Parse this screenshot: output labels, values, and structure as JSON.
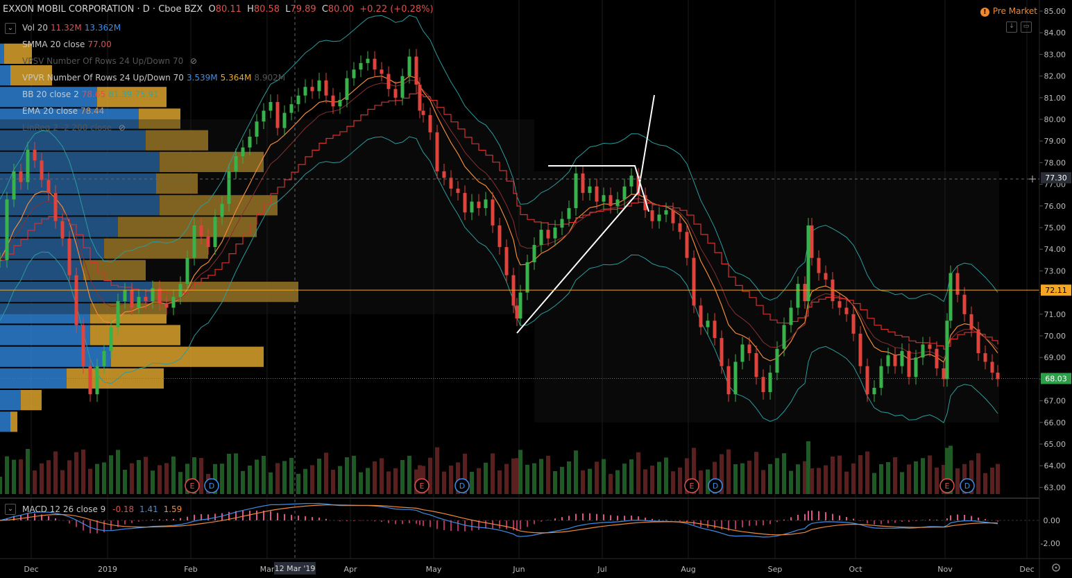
{
  "header": {
    "symbol": "EXXON MOBIL CORPORATION · D · Cboe BZX",
    "open_label": "O",
    "open": "80.11",
    "high_label": "H",
    "high": "80.58",
    "low_label": "L",
    "low": "79.89",
    "close_label": "C",
    "close": "80.00",
    "change": "+0.22 (+0.28%)",
    "premarket": "Pre Market",
    "premarket_icon": "!"
  },
  "indicators": [
    {
      "label": "Vol 20",
      "v1": "11.32M",
      "v2": "13.362M",
      "c1": "#e0504a",
      "c2": "#3d8ee8"
    },
    {
      "label": "SMMA 20 close",
      "v1": "77.00",
      "v2": "",
      "c1": "#e0504a",
      "c2": ""
    },
    {
      "label": "VPSV Number Of Rows 24 Up/Down 70",
      "v1": "",
      "v2": "",
      "c1": "",
      "c2": "",
      "dim": true,
      "eye": true
    },
    {
      "label": "VPVR Number Of Rows 24 Up/Down 70",
      "v1": "3.539M",
      "v2": "5.364M",
      "v3": "8.902M",
      "c1": "#3d8ee8",
      "c2": "#e8a92c"
    },
    {
      "label": "BB 20 close 2",
      "v1": "78.65",
      "v2": "81.39",
      "v3": "75.91",
      "c1": "#e0504a",
      "c2": "#2fa7a7"
    },
    {
      "label": "EMA 20 close",
      "v1": "78.44",
      "v2": "",
      "c1": "#f08a3a",
      "c2": ""
    },
    {
      "label": "LinReg 2 -2 200 close",
      "v1": "",
      "v2": "",
      "c1": "",
      "c2": "",
      "dim": true,
      "eye": true
    }
  ],
  "macd": {
    "label": "MACD 12 26 close 9",
    "v1": "-0.18",
    "v2": "1.41",
    "v3": "1.59",
    "c1": "#e0504a",
    "c2": "#3d8ee8",
    "c3": "#f08a3a"
  },
  "price_axis": {
    "ticks": [
      "85.00",
      "84.00",
      "83.00",
      "82.00",
      "81.00",
      "80.00",
      "79.00",
      "78.00",
      "77.00",
      "76.00",
      "75.00",
      "74.00",
      "73.00",
      "72.00",
      "71.00",
      "70.00",
      "69.00",
      "68.00",
      "67.00",
      "66.00",
      "65.00",
      "64.00",
      "63.00"
    ],
    "badges": [
      {
        "text": "77.30",
        "color": "#2a2e39"
      },
      {
        "text": "72.11",
        "color": "#f5a623"
      },
      {
        "text": "68.03",
        "color": "#2e9e4a"
      }
    ]
  },
  "macd_axis": {
    "ticks": [
      "0.00",
      "-2.00"
    ]
  },
  "time_axis": {
    "labels": [
      "Dec",
      "2019",
      "Feb",
      "Mar",
      "Apr",
      "May",
      "Jun",
      "Jul",
      "Aug",
      "Sep",
      "Oct",
      "Nov",
      "Dec"
    ],
    "crosshair_label": "12 Mar '19"
  },
  "events": [
    {
      "label": "E",
      "color": "#e0504a"
    },
    {
      "label": "D",
      "color": "#3d8ee8"
    },
    {
      "label": "E",
      "color": "#e0504a"
    },
    {
      "label": "D",
      "color": "#3d8ee8"
    },
    {
      "label": "E",
      "color": "#e0504a"
    },
    {
      "label": "D",
      "color": "#3d8ee8"
    },
    {
      "label": "E",
      "color": "#e0504a"
    },
    {
      "label": "D",
      "color": "#3d8ee8"
    }
  ],
  "chart_data": {
    "type": "candlestick",
    "ylim": [
      63,
      85
    ],
    "close_path": [
      [
        0,
        73.5
      ],
      [
        10,
        76.3
      ],
      [
        20,
        77.6
      ],
      [
        30,
        77.1
      ],
      [
        40,
        78.6
      ],
      [
        50,
        78.1
      ],
      [
        60,
        77.2
      ],
      [
        70,
        76.6
      ],
      [
        80,
        75.3
      ],
      [
        90,
        74.5
      ],
      [
        100,
        72.8
      ],
      [
        110,
        70.5
      ],
      [
        120,
        68.6
      ],
      [
        130,
        67.3
      ],
      [
        140,
        68.6
      ],
      [
        150,
        69.3
      ],
      [
        160,
        70.4
      ],
      [
        170,
        71.6
      ],
      [
        180,
        72.1
      ],
      [
        190,
        71.3
      ],
      [
        200,
        71.8
      ],
      [
        210,
        71.6
      ],
      [
        220,
        72.2
      ],
      [
        230,
        71.5
      ],
      [
        240,
        71.3
      ],
      [
        250,
        71.8
      ],
      [
        260,
        72.4
      ],
      [
        270,
        73.6
      ],
      [
        280,
        75.1
      ],
      [
        290,
        74.6
      ],
      [
        300,
        74.1
      ],
      [
        310,
        75.5
      ],
      [
        320,
        76.1
      ],
      [
        330,
        77.6
      ],
      [
        340,
        78.3
      ],
      [
        350,
        78.7
      ],
      [
        360,
        79.2
      ],
      [
        370,
        79.9
      ],
      [
        380,
        80.4
      ],
      [
        390,
        80.8
      ],
      [
        400,
        79.6
      ],
      [
        410,
        80.3
      ],
      [
        420,
        80.7
      ],
      [
        430,
        81.1
      ],
      [
        440,
        81.5
      ],
      [
        450,
        81.3
      ],
      [
        460,
        81.8
      ],
      [
        470,
        81.1
      ],
      [
        480,
        80.6
      ],
      [
        490,
        80.9
      ],
      [
        500,
        81.9
      ],
      [
        510,
        82.3
      ],
      [
        520,
        82.6
      ],
      [
        530,
        82.8
      ],
      [
        540,
        82.3
      ],
      [
        550,
        82.1
      ],
      [
        560,
        81.4
      ],
      [
        570,
        81.0
      ],
      [
        580,
        82.0
      ],
      [
        590,
        82.9
      ],
      [
        600,
        81.6
      ],
      [
        605,
        80.4
      ],
      [
        610,
        80.2
      ],
      [
        620,
        79.4
      ],
      [
        630,
        77.6
      ],
      [
        640,
        77.3
      ],
      [
        650,
        76.8
      ],
      [
        660,
        76.6
      ],
      [
        670,
        75.7
      ],
      [
        680,
        76.2
      ],
      [
        690,
        75.9
      ],
      [
        700,
        76.3
      ],
      [
        710,
        75.1
      ],
      [
        720,
        74.1
      ],
      [
        730,
        72.8
      ],
      [
        740,
        71.4
      ],
      [
        745,
        70.8
      ],
      [
        750,
        72.0
      ],
      [
        760,
        73.4
      ],
      [
        770,
        74.2
      ],
      [
        780,
        74.9
      ],
      [
        790,
        74.5
      ],
      [
        800,
        75.0
      ],
      [
        810,
        75.4
      ],
      [
        820,
        75.9
      ],
      [
        830,
        77.5
      ],
      [
        840,
        76.6
      ],
      [
        850,
        76.9
      ],
      [
        860,
        76.2
      ],
      [
        870,
        76.5
      ],
      [
        880,
        76.0
      ],
      [
        890,
        76.3
      ],
      [
        900,
        76.9
      ],
      [
        910,
        77.4
      ],
      [
        920,
        76.5
      ],
      [
        930,
        75.8
      ],
      [
        940,
        75.3
      ],
      [
        950,
        75.6
      ],
      [
        960,
        75.8
      ],
      [
        970,
        75.2
      ],
      [
        980,
        74.8
      ],
      [
        990,
        73.6
      ],
      [
        1000,
        71.4
      ],
      [
        1010,
        70.4
      ],
      [
        1020,
        70.7
      ],
      [
        1030,
        69.9
      ],
      [
        1040,
        68.6
      ],
      [
        1050,
        67.3
      ],
      [
        1060,
        68.8
      ],
      [
        1070,
        69.6
      ],
      [
        1080,
        69.2
      ],
      [
        1090,
        68.1
      ],
      [
        1100,
        67.4
      ],
      [
        1110,
        68.3
      ],
      [
        1120,
        69.4
      ],
      [
        1130,
        70.5
      ],
      [
        1140,
        71.3
      ],
      [
        1150,
        72.4
      ],
      [
        1160,
        71.6
      ],
      [
        1165,
        75.1
      ],
      [
        1170,
        73.6
      ],
      [
        1180,
        72.9
      ],
      [
        1190,
        72.6
      ],
      [
        1200,
        71.6
      ],
      [
        1210,
        71.3
      ],
      [
        1220,
        71.0
      ],
      [
        1230,
        70.1
      ],
      [
        1240,
        68.6
      ],
      [
        1250,
        67.3
      ],
      [
        1260,
        67.6
      ],
      [
        1270,
        68.6
      ],
      [
        1280,
        69.1
      ],
      [
        1290,
        68.6
      ],
      [
        1300,
        69.3
      ],
      [
        1310,
        68.1
      ],
      [
        1320,
        69.0
      ],
      [
        1330,
        69.6
      ],
      [
        1340,
        69.4
      ],
      [
        1350,
        68.5
      ],
      [
        1360,
        68.0
      ],
      [
        1365,
        70.7
      ],
      [
        1370,
        72.9
      ],
      [
        1380,
        71.9
      ],
      [
        1390,
        71.0
      ],
      [
        1400,
        70.3
      ],
      [
        1410,
        69.2
      ],
      [
        1420,
        68.8
      ],
      [
        1430,
        68.3
      ],
      [
        1438,
        68.0
      ]
    ],
    "price_labels": {
      "last": 68.03,
      "hline": 72.11,
      "crosshair": 77.3
    }
  }
}
